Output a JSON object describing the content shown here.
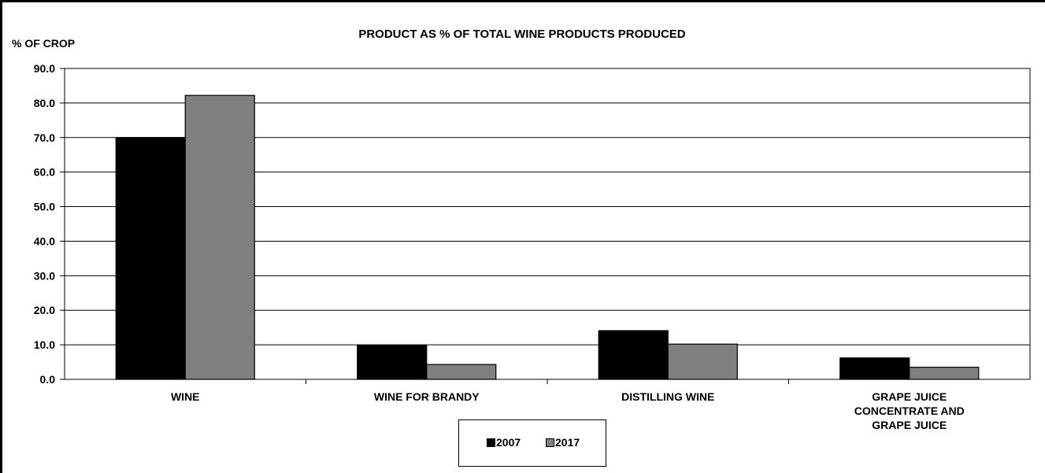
{
  "chart_data": {
    "type": "bar",
    "title": "PRODUCT AS % OF TOTAL WINE PRODUCTS PRODUCED",
    "ylabel": "% OF CROP",
    "xlabel": "",
    "ylim": [
      0,
      90
    ],
    "yticks": [
      "0.0",
      "10.0",
      "20.0",
      "30.0",
      "40.0",
      "50.0",
      "60.0",
      "70.0",
      "80.0",
      "90.0"
    ],
    "categories": [
      [
        "WINE"
      ],
      [
        "WINE FOR BRANDY"
      ],
      [
        "DISTILLING WINE"
      ],
      [
        "GRAPE JUICE",
        "CONCENTRATE AND",
        "GRAPE JUICE"
      ]
    ],
    "series": [
      {
        "name": "2007",
        "color": "#000000",
        "values": [
          70.0,
          9.9,
          14.1,
          6.2
        ]
      },
      {
        "name": "2017",
        "color": "#808080",
        "values": [
          82.2,
          4.3,
          10.2,
          3.5
        ]
      }
    ],
    "grid": true,
    "legend": "bottom-center"
  }
}
